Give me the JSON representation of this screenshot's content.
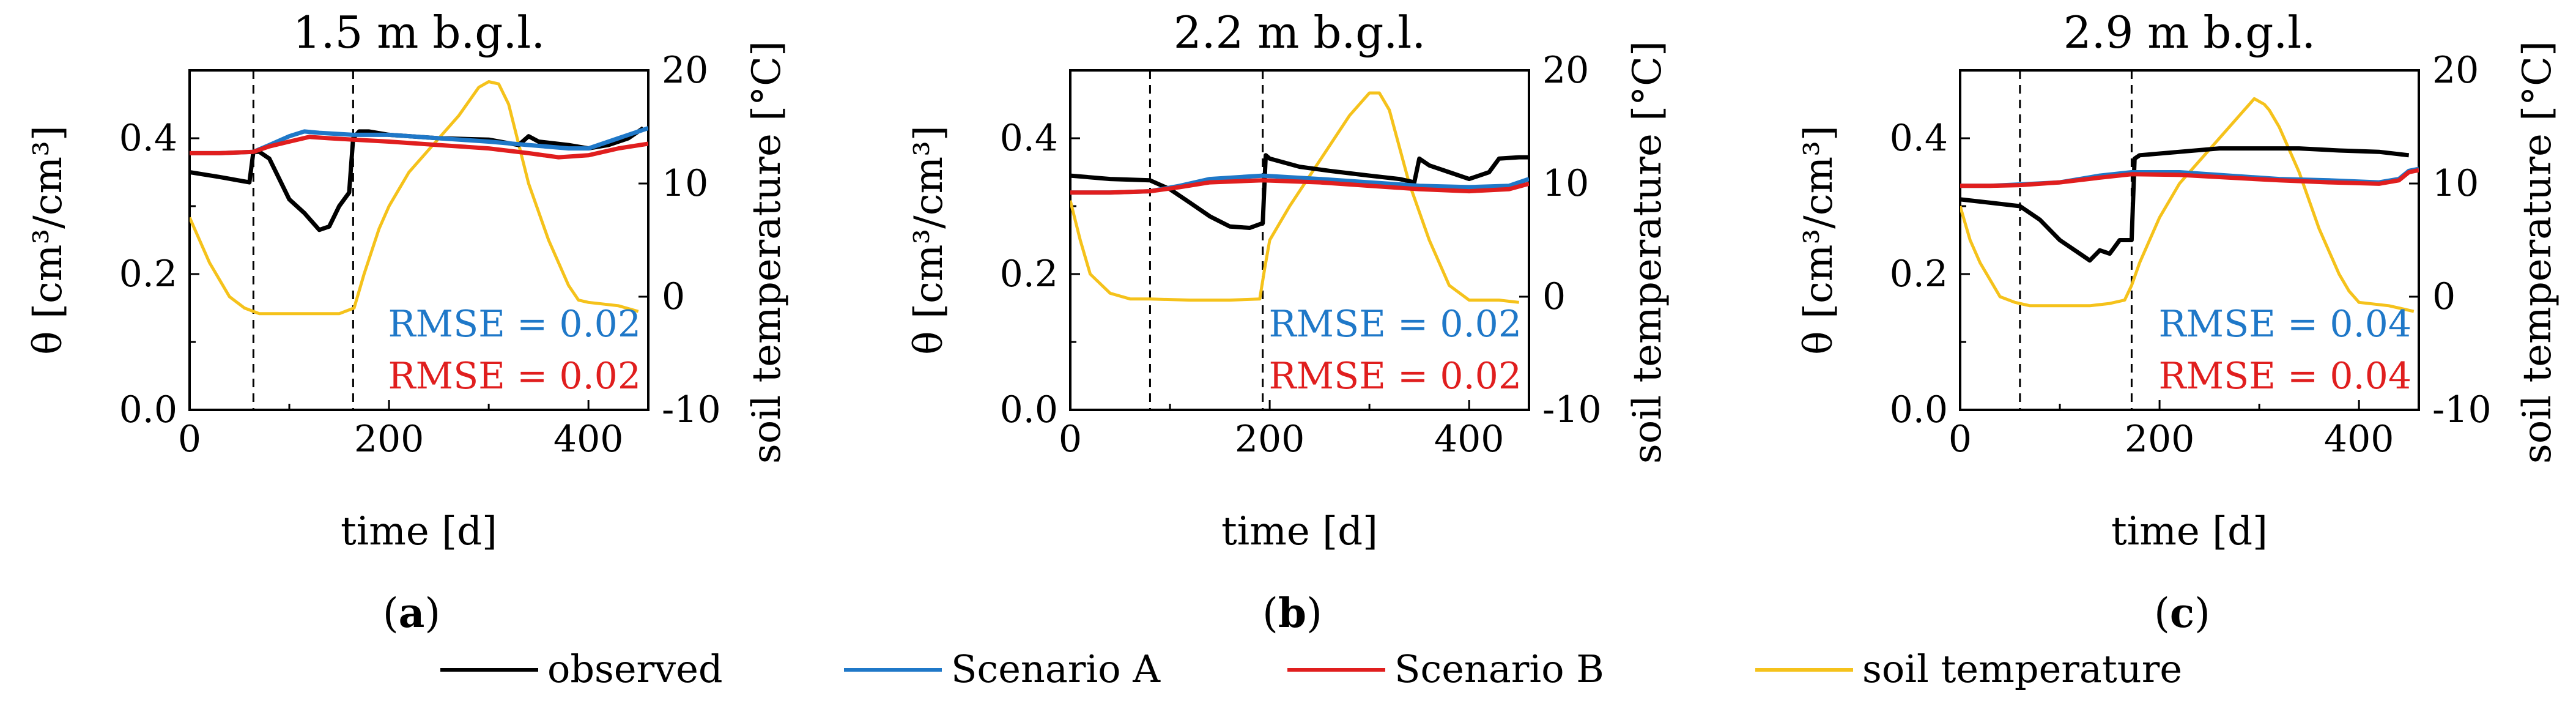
{
  "chart_data": [
    {
      "type": "line",
      "title": "1.5 m b.g.l.",
      "panel_label": "a",
      "xlabel": "time [d]",
      "ylabel": "θ [cm³/cm³]",
      "y2label": "soil temperature [°C]",
      "xlim": [
        0,
        460
      ],
      "ylim": [
        0,
        0.5
      ],
      "y2lim": [
        -10,
        20
      ],
      "xticks": [
        "0",
        "200",
        "400"
      ],
      "yticks": [
        "0.0",
        "0.2",
        "0.4"
      ],
      "y2ticks": [
        "-10",
        "0",
        "10",
        "20"
      ],
      "vlines": [
        64,
        164
      ],
      "rmse": [
        {
          "text": "RMSE = 0.02",
          "series": "Scenario A"
        },
        {
          "text": "RMSE = 0.02",
          "series": "Scenario B"
        }
      ],
      "series": [
        {
          "name": "observed",
          "axis": "left",
          "x": [
            0,
            30,
            60,
            64,
            70,
            80,
            90,
            100,
            115,
            130,
            140,
            150,
            160,
            164,
            170,
            180,
            200,
            250,
            300,
            330,
            340,
            350,
            380,
            400,
            420,
            440,
            455
          ],
          "y": [
            0.35,
            0.343,
            0.335,
            0.38,
            0.38,
            0.37,
            0.34,
            0.31,
            0.29,
            0.265,
            0.27,
            0.3,
            0.32,
            0.4,
            0.41,
            0.41,
            0.405,
            0.4,
            0.398,
            0.39,
            0.403,
            0.395,
            0.39,
            0.385,
            0.39,
            0.4,
            0.415
          ]
        },
        {
          "name": "Scenario A",
          "axis": "left",
          "x": [
            0,
            30,
            64,
            80,
            100,
            115,
            130,
            164,
            200,
            250,
            300,
            340,
            380,
            400,
            430,
            450,
            460
          ],
          "y": [
            0.378,
            0.378,
            0.38,
            0.39,
            0.403,
            0.41,
            0.408,
            0.405,
            0.405,
            0.4,
            0.395,
            0.39,
            0.385,
            0.385,
            0.4,
            0.41,
            0.415
          ]
        },
        {
          "name": "Scenario B",
          "axis": "left",
          "x": [
            0,
            30,
            64,
            80,
            100,
            120,
            140,
            164,
            200,
            250,
            300,
            340,
            370,
            400,
            430,
            460
          ],
          "y": [
            0.378,
            0.378,
            0.38,
            0.388,
            0.395,
            0.402,
            0.4,
            0.398,
            0.395,
            0.39,
            0.385,
            0.378,
            0.372,
            0.375,
            0.385,
            0.392
          ]
        },
        {
          "name": "soil temperature",
          "axis": "right",
          "x": [
            0,
            10,
            20,
            40,
            55,
            70,
            100,
            130,
            150,
            165,
            175,
            190,
            200,
            220,
            250,
            270,
            290,
            300,
            310,
            320,
            340,
            360,
            380,
            390,
            400,
            430,
            450
          ],
          "y": [
            7,
            5,
            3,
            0,
            -1,
            -1.5,
            -1.5,
            -1.5,
            -1.5,
            -1,
            2,
            6,
            8,
            11,
            14,
            16,
            18.5,
            19,
            18.8,
            17,
            10,
            5,
            1,
            -0.3,
            -0.5,
            -0.8,
            -1.3
          ]
        }
      ]
    },
    {
      "type": "line",
      "title": "2.2 m b.g.l.",
      "panel_label": "b",
      "xlabel": "time [d]",
      "ylabel": "θ [cm³/cm³]",
      "y2label": "soil temperature [°C]",
      "xlim": [
        0,
        460
      ],
      "ylim": [
        0,
        0.5
      ],
      "y2lim": [
        -10,
        20
      ],
      "xticks": [
        "0",
        "200",
        "400"
      ],
      "yticks": [
        "0.0",
        "0.2",
        "0.4"
      ],
      "y2ticks": [
        "-10",
        "0",
        "10",
        "20"
      ],
      "vlines": [
        80,
        193
      ],
      "rmse": [
        {
          "text": "RMSE = 0.02",
          "series": "Scenario A"
        },
        {
          "text": "RMSE = 0.02",
          "series": "Scenario B"
        }
      ],
      "series": [
        {
          "name": "observed",
          "axis": "left",
          "x": [
            0,
            40,
            80,
            100,
            120,
            140,
            160,
            180,
            193,
            196,
            200,
            230,
            260,
            300,
            330,
            345,
            350,
            360,
            380,
            400,
            420,
            430,
            450,
            460
          ],
          "y": [
            0.345,
            0.34,
            0.338,
            0.325,
            0.305,
            0.285,
            0.27,
            0.268,
            0.275,
            0.375,
            0.37,
            0.358,
            0.352,
            0.345,
            0.34,
            0.335,
            0.37,
            0.36,
            0.35,
            0.34,
            0.35,
            0.37,
            0.372,
            0.372
          ]
        },
        {
          "name": "Scenario A",
          "axis": "left",
          "x": [
            0,
            40,
            80,
            110,
            140,
            193,
            250,
            300,
            350,
            400,
            440,
            460
          ],
          "y": [
            0.32,
            0.32,
            0.322,
            0.33,
            0.34,
            0.345,
            0.34,
            0.335,
            0.33,
            0.328,
            0.33,
            0.34
          ]
        },
        {
          "name": "Scenario B",
          "axis": "left",
          "x": [
            0,
            40,
            80,
            110,
            140,
            193,
            250,
            300,
            350,
            400,
            440,
            460
          ],
          "y": [
            0.32,
            0.32,
            0.322,
            0.328,
            0.335,
            0.338,
            0.335,
            0.33,
            0.325,
            0.322,
            0.325,
            0.333
          ]
        },
        {
          "name": "soil temperature",
          "axis": "right",
          "x": [
            0,
            10,
            20,
            40,
            60,
            80,
            120,
            160,
            190,
            195,
            200,
            220,
            250,
            280,
            300,
            310,
            320,
            340,
            360,
            380,
            400,
            430,
            450
          ],
          "y": [
            8.5,
            5,
            2,
            0.3,
            -0.2,
            -0.2,
            -0.3,
            -0.3,
            -0.2,
            2.5,
            5,
            8,
            12,
            16,
            18,
            18,
            16.5,
            10,
            5,
            1,
            -0.3,
            -0.3,
            -0.5
          ]
        }
      ]
    },
    {
      "type": "line",
      "title": "2.9 m b.g.l.",
      "panel_label": "c",
      "xlabel": "time [d]",
      "ylabel": "θ [cm³/cm³]",
      "y2label": "soil temperature [°C]",
      "xlim": [
        0,
        460
      ],
      "ylim": [
        0,
        0.5
      ],
      "y2lim": [
        -10,
        20
      ],
      "xticks": [
        "0",
        "200",
        "400"
      ],
      "yticks": [
        "0.0",
        "0.2",
        "0.4"
      ],
      "y2ticks": [
        "-10",
        "0",
        "10",
        "20"
      ],
      "vlines": [
        60,
        172
      ],
      "rmse": [
        {
          "text": "RMSE = 0.04",
          "series": "Scenario A"
        },
        {
          "text": "RMSE = 0.04",
          "series": "Scenario B"
        }
      ],
      "series": [
        {
          "name": "observed",
          "axis": "left",
          "x": [
            0,
            30,
            60,
            80,
            100,
            120,
            130,
            140,
            150,
            160,
            172,
            175,
            180,
            220,
            260,
            300,
            340,
            380,
            420,
            450
          ],
          "y": [
            0.31,
            0.305,
            0.3,
            0.28,
            0.25,
            0.23,
            0.22,
            0.235,
            0.23,
            0.25,
            0.25,
            0.37,
            0.375,
            0.38,
            0.385,
            0.385,
            0.385,
            0.382,
            0.38,
            0.375
          ]
        },
        {
          "name": "Scenario A",
          "axis": "left",
          "x": [
            0,
            30,
            60,
            100,
            140,
            172,
            220,
            270,
            320,
            370,
            420,
            440,
            450,
            460
          ],
          "y": [
            0.33,
            0.33,
            0.332,
            0.335,
            0.345,
            0.35,
            0.35,
            0.345,
            0.34,
            0.338,
            0.335,
            0.34,
            0.352,
            0.355
          ]
        },
        {
          "name": "Scenario B",
          "axis": "left",
          "x": [
            0,
            30,
            60,
            100,
            140,
            172,
            220,
            270,
            320,
            370,
            420,
            440,
            450,
            460
          ],
          "y": [
            0.33,
            0.33,
            0.331,
            0.335,
            0.342,
            0.347,
            0.346,
            0.342,
            0.338,
            0.335,
            0.333,
            0.338,
            0.35,
            0.353
          ]
        },
        {
          "name": "soil temperature",
          "axis": "right",
          "x": [
            0,
            10,
            20,
            40,
            55,
            70,
            100,
            130,
            150,
            165,
            172,
            180,
            200,
            220,
            250,
            280,
            295,
            305,
            310,
            320,
            340,
            360,
            380,
            390,
            400,
            430,
            455
          ],
          "y": [
            8,
            5,
            3,
            0,
            -0.5,
            -0.8,
            -0.8,
            -0.8,
            -0.6,
            -0.3,
            1,
            3,
            7,
            10,
            13,
            16,
            17.5,
            17,
            16.5,
            15,
            11,
            6,
            2,
            0.5,
            -0.5,
            -0.8,
            -1.3
          ]
        }
      ]
    }
  ],
  "legend": {
    "position": "bottom-center",
    "entries": [
      {
        "label": "observed",
        "color": "#000000"
      },
      {
        "label": "Scenario A",
        "color": "#1f78c8"
      },
      {
        "label": "Scenario B",
        "color": "#e01e1e"
      },
      {
        "label": "soil temperature",
        "color": "#f5c21b"
      }
    ]
  },
  "colors": {
    "observed": "#000000",
    "Scenario A": "#1f78c8",
    "Scenario B": "#e01e1e",
    "soil temperature": "#f5c21b"
  }
}
